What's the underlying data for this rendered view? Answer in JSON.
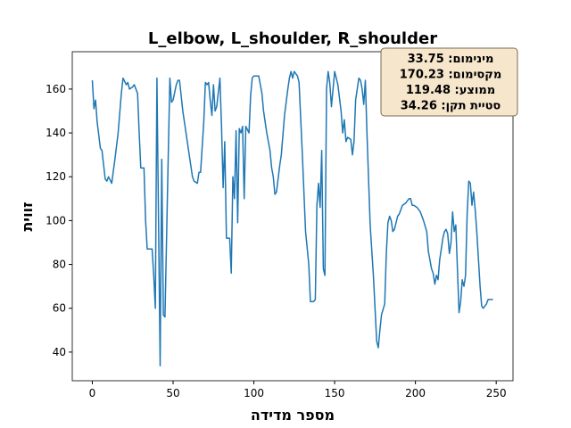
{
  "chart_data": {
    "type": "line",
    "title": "L_elbow, L_shoulder, R_shoulder",
    "xlabel": "מספר מדידה",
    "ylabel": "זווית",
    "annotations": [
      "מינימום: 33.75",
      "מקסימום: 170.23",
      "ממוצע: 119.48",
      "סטיית תקן: 34.26"
    ],
    "color": "#1f77b4",
    "xlim": [
      -12.4,
      260.4
    ],
    "ylim": [
      26.93,
      177.05
    ],
    "xticks": [
      0,
      50,
      100,
      150,
      200,
      250
    ],
    "yticks": [
      40,
      60,
      80,
      100,
      120,
      140,
      160
    ],
    "x": [
      0,
      1,
      2,
      3,
      5,
      6,
      8,
      9,
      10,
      12,
      14,
      16,
      18,
      19,
      21,
      22,
      23,
      25,
      26,
      28,
      29,
      30,
      32,
      33,
      34,
      37,
      38,
      39,
      40,
      41,
      42,
      43,
      44,
      45,
      47,
      48,
      49,
      50,
      52,
      53,
      54,
      56,
      58,
      60,
      62,
      63,
      65,
      66,
      67,
      69,
      70,
      71,
      72,
      73,
      74,
      75,
      76,
      77,
      79,
      80,
      81,
      82,
      83,
      85,
      86,
      87,
      88,
      89,
      90,
      91,
      92,
      93,
      94,
      95,
      97,
      98,
      99,
      100,
      103,
      105,
      106,
      108,
      110,
      111,
      112,
      113,
      114,
      116,
      117,
      119,
      121,
      122,
      123,
      124,
      125,
      127,
      128,
      130,
      132,
      134,
      135,
      137,
      138,
      139,
      140,
      141,
      142,
      143,
      144,
      145,
      146,
      147,
      148,
      150,
      151,
      152,
      154,
      155,
      156,
      157,
      158,
      160,
      161,
      162,
      163,
      165,
      166,
      167,
      168,
      169,
      170,
      172,
      174,
      176,
      177,
      178,
      179,
      181,
      182,
      183,
      184,
      185,
      186,
      187,
      189,
      190,
      192,
      194,
      196,
      197,
      198,
      199,
      201,
      203,
      205,
      207,
      208,
      210,
      211,
      212,
      213,
      214,
      215,
      217,
      218,
      219,
      220,
      221,
      222,
      223,
      224,
      225,
      226,
      227,
      228,
      229,
      230,
      231,
      232,
      233,
      234,
      235,
      236,
      237,
      238,
      240,
      241,
      242,
      244,
      245,
      248
    ],
    "values": [
      164,
      151,
      155,
      145,
      133,
      132,
      119,
      118,
      120,
      117,
      128,
      140,
      158,
      165,
      162,
      163,
      160,
      161,
      162,
      158,
      140,
      124,
      124,
      100,
      87,
      87,
      75,
      60,
      165,
      100,
      33.75,
      128,
      57,
      56,
      130,
      165,
      154,
      155,
      162,
      164,
      164,
      150,
      140,
      130,
      120,
      118,
      117,
      122,
      122,
      145,
      163,
      162,
      163,
      155,
      148,
      162,
      150,
      152,
      165,
      143,
      115,
      136,
      92,
      92,
      76,
      120,
      110,
      141,
      99,
      142,
      140,
      143,
      110,
      143,
      140,
      157,
      165,
      166,
      166,
      158,
      150,
      140,
      132,
      124,
      120,
      112,
      113,
      125,
      130,
      148,
      160,
      165,
      168,
      165,
      168,
      166,
      163,
      130,
      95,
      80,
      63,
      63,
      64,
      107,
      117,
      106,
      132,
      78,
      75,
      160,
      168,
      163,
      152,
      168,
      165,
      162,
      150,
      140,
      146,
      136,
      138,
      137,
      130,
      136,
      155,
      165,
      164,
      160,
      153,
      164,
      140,
      98,
      75,
      45,
      42,
      50,
      57,
      62,
      85,
      99,
      102,
      100,
      95,
      96,
      102,
      103,
      107,
      108,
      110,
      110,
      107,
      107,
      106,
      104,
      100,
      95,
      86,
      78,
      76,
      71,
      75,
      73,
      82,
      92,
      95,
      96,
      94,
      85,
      90,
      104,
      95,
      98,
      78,
      58,
      63,
      73,
      70,
      75,
      103,
      118,
      117,
      107,
      113,
      105,
      95,
      70,
      61,
      60,
      62,
      64,
      64
    ]
  }
}
